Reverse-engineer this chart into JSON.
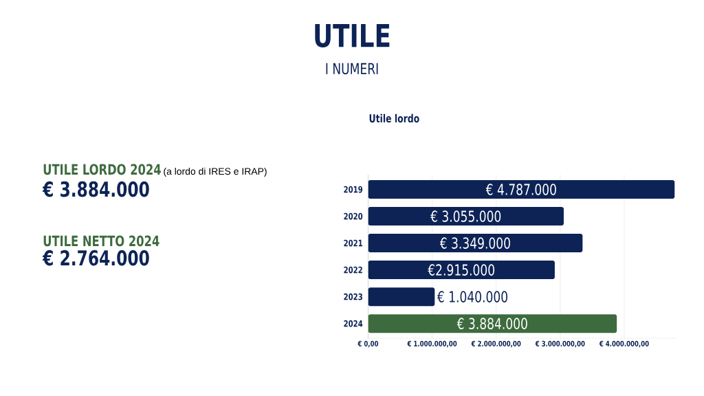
{
  "chart_data": {
    "type": "bar",
    "orientation": "horizontal",
    "title": "UTILE",
    "subtitle": "I NUMERI",
    "categories": [
      "2019",
      "2020",
      "2021",
      "2022",
      "2023",
      "2024"
    ],
    "values": [
      4787000,
      3055000,
      3349000,
      2915000,
      1040000,
      3884000
    ],
    "value_labels": [
      "€ 4.787.000",
      "€ 3.055.000",
      "€ 3.349.000",
      "€2.915.000",
      "€ 1.040.000",
      "€ 3.884.000"
    ],
    "colors": [
      "#0d2356",
      "#0d2356",
      "#0d2356",
      "#0d2356",
      "#0d2356",
      "#3d6b3e"
    ],
    "xlim": [
      0,
      4800000
    ],
    "xticks": [
      {
        "value": 0,
        "label": "€ 0,00"
      },
      {
        "value": 1000000,
        "label": "€ 1.000.000,00"
      },
      {
        "value": 2000000,
        "label": "€ 2.000.000,00"
      },
      {
        "value": 3000000,
        "label": "€ 3.000.000,00"
      },
      {
        "value": 4000000,
        "label": "€ 4.000.000,00"
      }
    ],
    "grid": "x",
    "annotations": [
      "UTILE LORDO 2024",
      "(a lordo di IRES e IRAP)",
      "€ 3.884.000",
      "UTILE NETTO 2024",
      "€ 2.764.000",
      "Utile lordo"
    ]
  }
}
